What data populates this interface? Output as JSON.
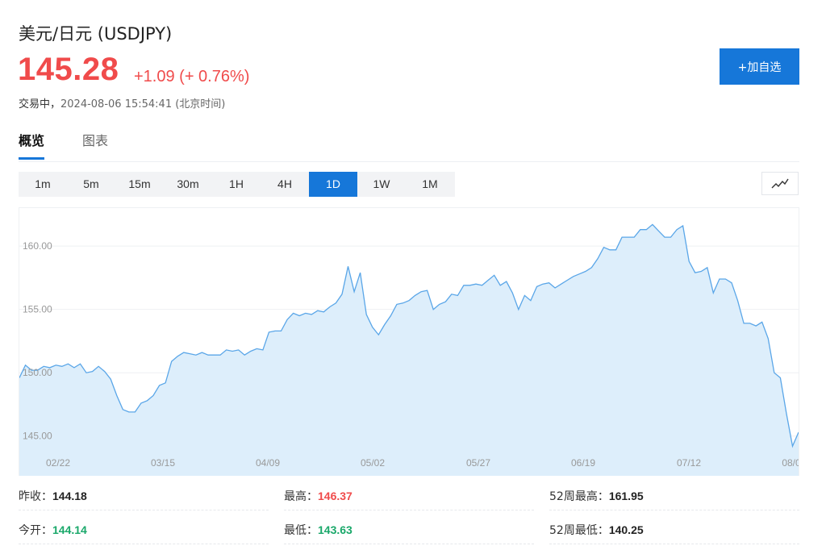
{
  "header": {
    "title": "美元/日元 (USDJPY)",
    "price": "145.28",
    "change": "+1.09 (+ 0.76%)",
    "status_state": "交易中，",
    "status_time": "2024-08-06 15:54:41 (北京时间)",
    "add_button": "+加自选"
  },
  "tabs": [
    {
      "label": "概览"
    },
    {
      "label": "图表"
    }
  ],
  "ranges": [
    "1m",
    "5m",
    "15m",
    "30m",
    "1H",
    "4H",
    "1D",
    "1W",
    "1M"
  ],
  "selected_range": "1D",
  "stats": [
    {
      "label": "昨收：",
      "value": "144.18"
    },
    {
      "label": "最高：",
      "value": "146.37"
    },
    {
      "label": "52周最高：",
      "value": "161.95"
    },
    {
      "label": "今开：",
      "value": "144.14"
    },
    {
      "label": "最低：",
      "value": "143.63"
    },
    {
      "label": "52周最低：",
      "value": "140.25"
    }
  ],
  "colors": {
    "up": "#f04b4b",
    "down": "#1aa86a",
    "accent": "#1677d9",
    "line": "#5aa6e8",
    "area": "#ddeefb"
  },
  "chart_data": {
    "type": "area",
    "xlabels": [
      "02/22",
      "03/15",
      "04/09",
      "05/02",
      "05/27",
      "06/19",
      "07/12",
      "08/0"
    ],
    "ytick_labels": [
      "160.00",
      "155.00",
      "150.00",
      "145.00"
    ],
    "y_ticks": [
      160,
      155,
      150,
      145
    ],
    "ylim": [
      141.8,
      163
    ],
    "values": [
      149.6,
      150.6,
      150.2,
      150.2,
      150.5,
      150.4,
      150.6,
      150.5,
      150.7,
      150.4,
      150.7,
      150.0,
      150.1,
      150.5,
      150.1,
      149.5,
      148.2,
      147.1,
      146.9,
      146.9,
      147.6,
      147.8,
      148.2,
      149.0,
      149.2,
      150.9,
      151.3,
      151.6,
      151.5,
      151.4,
      151.6,
      151.4,
      151.4,
      151.4,
      151.8,
      151.7,
      151.8,
      151.4,
      151.7,
      151.9,
      151.8,
      153.2,
      153.3,
      153.3,
      154.2,
      154.7,
      154.5,
      154.7,
      154.6,
      154.9,
      154.8,
      155.2,
      155.5,
      156.2,
      158.4,
      156.4,
      157.9,
      154.6,
      153.6,
      153.0,
      153.8,
      154.5,
      155.4,
      155.5,
      155.7,
      156.1,
      156.4,
      156.5,
      155.0,
      155.4,
      155.6,
      156.2,
      156.1,
      156.9,
      156.9,
      157.0,
      156.9,
      157.3,
      157.7,
      156.9,
      157.2,
      156.3,
      155.0,
      156.1,
      155.7,
      156.8,
      157.0,
      157.1,
      156.7,
      157.0,
      157.3,
      157.6,
      157.8,
      158.0,
      158.3,
      159.0,
      159.9,
      159.7,
      159.7,
      160.7,
      160.7,
      160.7,
      161.3,
      161.3,
      161.7,
      161.2,
      160.7,
      160.7,
      161.3,
      161.6,
      158.8,
      157.9,
      158.0,
      158.3,
      156.3,
      157.4,
      157.4,
      157.1,
      155.7,
      153.9,
      153.9,
      153.7,
      154.0,
      152.7,
      150.0,
      149.6,
      146.8,
      144.2,
      145.3
    ]
  }
}
